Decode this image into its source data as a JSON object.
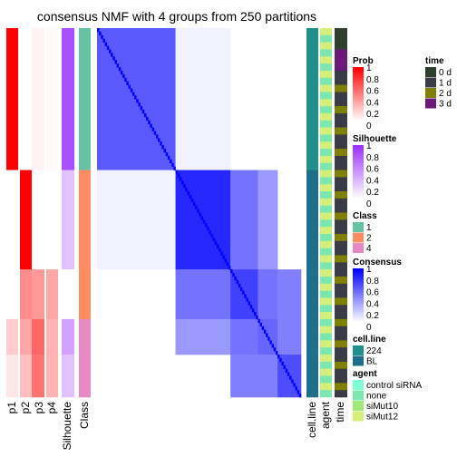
{
  "chart_data": {
    "type": "heatmap",
    "title": "consensus NMF with 4 groups from 250 partitions",
    "groups": [
      {
        "class": "1",
        "n": 40,
        "prob": [
          1,
          0,
          0.05,
          0.02
        ],
        "silhouette": 0.85
      },
      {
        "class": "2",
        "n": 28,
        "prob": [
          0,
          1,
          0,
          0
        ],
        "silhouette": 0.3
      },
      {
        "class": "2",
        "n": 14,
        "prob": [
          0,
          0.45,
          0.4,
          0.35
        ],
        "silhouette": 0.0
      },
      {
        "class": "4",
        "n": 10,
        "prob": [
          0.2,
          0.35,
          0.6,
          0.3
        ],
        "silhouette": 0.45
      },
      {
        "class": "4",
        "n": 12,
        "prob": [
          0.1,
          0.25,
          0.55,
          0.3
        ],
        "silhouette": 0.3
      }
    ],
    "consensus_within": [
      0.65,
      0.85,
      0.75,
      0.6,
      0.7
    ],
    "consensus_between": {
      "1-2": 0.05,
      "2-3": 0.55,
      "2-4": 0.4,
      "3-4": 0.55,
      "4-5": 0.5,
      "3-5": 0.5
    },
    "row_annotations": [
      "p1",
      "p2",
      "p3",
      "p4",
      "Silhouette",
      "Class"
    ],
    "column_annotations": [
      "cell.line",
      "agent",
      "time"
    ],
    "legends": {
      "prob": {
        "title": "Prob",
        "ticks": [
          "1",
          "0.8",
          "0.6",
          "0.4",
          "0.2",
          "0"
        ]
      },
      "silhouette": {
        "title": "Silhouette",
        "ticks": [
          "1",
          "0.8",
          "0.6",
          "0.4",
          "0.2",
          "0"
        ]
      },
      "class": {
        "title": "Class",
        "items": [
          {
            "label": "1",
            "color": "#66C2A5"
          },
          {
            "label": "2",
            "color": "#FC8D62"
          },
          {
            "label": "4",
            "color": "#E78AC3"
          }
        ]
      },
      "consensus": {
        "title": "Consensus",
        "ticks": [
          "1",
          "0.8",
          "0.6",
          "0.4",
          "0.2",
          "0"
        ]
      },
      "cell_line": {
        "title": "cell.line",
        "items": [
          {
            "label": "224",
            "color": "#21908C"
          },
          {
            "label": "BL",
            "color": "#1F6F8B"
          }
        ]
      },
      "agent": {
        "title": "agent",
        "items": [
          {
            "label": "control siRNA",
            "color": "#7FFFD4"
          },
          {
            "label": "none",
            "color": "#7CE8B0"
          },
          {
            "label": "siMut10",
            "color": "#A0E87A"
          },
          {
            "label": "siMut12",
            "color": "#D4F07A"
          }
        ]
      },
      "time": {
        "title": "time",
        "items": [
          {
            "label": "0 d",
            "color": "#2F3F2F"
          },
          {
            "label": "1 d",
            "color": "#3B3B45"
          },
          {
            "label": "2 d",
            "color": "#808000"
          },
          {
            "label": "3 d",
            "color": "#6A1B7A"
          }
        ]
      }
    },
    "colors": {
      "prob_high": "#FF0000",
      "sil_high": "#9B30FF",
      "consensus_high": "#0000FF"
    }
  }
}
